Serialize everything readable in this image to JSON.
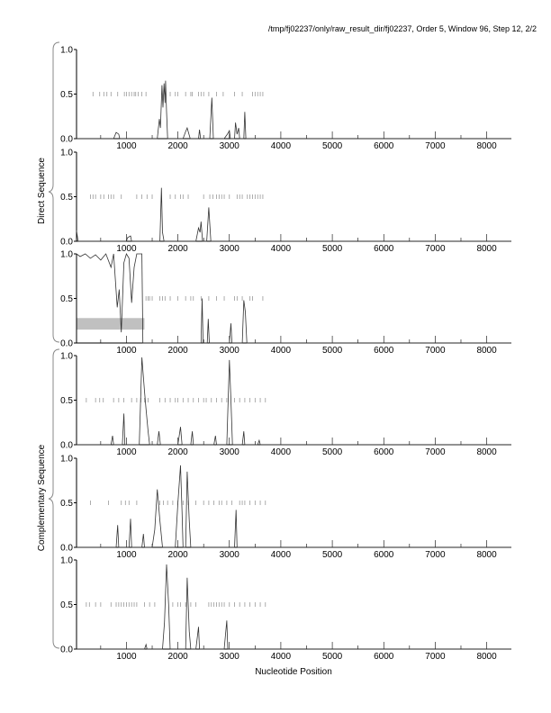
{
  "chart_data": {
    "type": "line",
    "title": "/tmp/fj02237/only/raw_result_dir/fj02237, Order 5, Window 96, Step 12, 2/2",
    "xlabel": "Nucleotide Position",
    "group_labels": [
      "Direct Sequence",
      "Complementary Sequence"
    ],
    "xlim": [
      30,
      8480
    ],
    "ylim": [
      0,
      1
    ],
    "x_ticks": [
      1000,
      2000,
      3000,
      4000,
      5000,
      6000,
      7000,
      8000
    ],
    "y_ticks": [
      "0.0",
      "0.5",
      "1.0"
    ],
    "grid": false,
    "line_color": "#333333",
    "tick_mark_color": "#999999",
    "panels": [
      {
        "series": {
          "x": [
            30,
            750,
            800,
            850,
            870,
            1600,
            1640,
            1660,
            1690,
            1710,
            1730,
            1750,
            1760,
            1780,
            1800,
            2100,
            2150,
            2180,
            2210,
            2240,
            2400,
            2420,
            2440,
            2620,
            2660,
            2690,
            2900,
            2960,
            3000,
            3020,
            3100,
            3120,
            3150,
            3180,
            3200,
            3280,
            3300,
            3320,
            8480
          ],
          "y": [
            0,
            0,
            0.07,
            0.05,
            0,
            0,
            0.22,
            0.12,
            0.6,
            0.35,
            0.62,
            0.4,
            0.65,
            0.3,
            0,
            0,
            0.08,
            0.12,
            0.06,
            0,
            0,
            0.1,
            0,
            0,
            0.46,
            0,
            0,
            0.05,
            0.09,
            0,
            0,
            0.18,
            0.05,
            0.12,
            0,
            0,
            0.3,
            0,
            0
          ]
        },
        "orf_marks": [
          350,
          480,
          560,
          620,
          700,
          830,
          960,
          1000,
          1050,
          1100,
          1150,
          1180,
          1230,
          1300,
          1380,
          1850,
          1950,
          2000,
          2150,
          2250,
          2280,
          2400,
          2450,
          2500,
          2600,
          2750,
          2880,
          3100,
          3250,
          3450,
          3500,
          3550,
          3600,
          3650
        ]
      },
      {
        "series": {
          "x": [
            30,
            60,
            1000,
            1020,
            1080,
            1100,
            1650,
            1680,
            1700,
            1730,
            2350,
            2400,
            2430,
            2450,
            2480,
            2560,
            2600,
            2640,
            8480
          ],
          "y": [
            0.12,
            0,
            0,
            0.04,
            0.06,
            0,
            0,
            0.6,
            0.1,
            0,
            0,
            0.15,
            0.1,
            0.22,
            0,
            0,
            0.38,
            0,
            0
          ]
        },
        "orf_marks": [
          300,
          350,
          400,
          500,
          560,
          650,
          700,
          750,
          900,
          1200,
          1300,
          1400,
          1500,
          1850,
          1950,
          2050,
          2100,
          2200,
          2500,
          2620,
          2680,
          2750,
          2800,
          2850,
          2900,
          3000,
          3150,
          3200,
          3250,
          3350,
          3400,
          3450,
          3500,
          3550,
          3600,
          3650
        ]
      },
      {
        "series": {
          "x": [
            30,
            100,
            200,
            300,
            400,
            500,
            600,
            700,
            750,
            820,
            860,
            900,
            950,
            1000,
            1050,
            1100,
            1150,
            1200,
            1300,
            1320,
            2450,
            2470,
            2490,
            2570,
            2590,
            2610,
            3000,
            3030,
            3050,
            3250,
            3280,
            3310,
            3340,
            8480
          ],
          "y": [
            1,
            0.97,
            1,
            0.95,
            0.99,
            0.93,
            1,
            0.85,
            1,
            0.4,
            0.6,
            0.12,
            0.9,
            1,
            0.95,
            0.45,
            0.85,
            1,
            1,
            0,
            0,
            0.5,
            0,
            0,
            0.27,
            0,
            0,
            0.22,
            0,
            0,
            0.48,
            0.35,
            0,
            0
          ]
        },
        "shaded_region": {
          "x": [
            30,
            1350
          ],
          "y": [
            0.15,
            0.28
          ]
        },
        "orf_marks": [
          1380,
          1420,
          1450,
          1500,
          1650,
          1700,
          1750,
          1850,
          2000,
          2150,
          2250,
          2300,
          2450,
          2600,
          2750,
          2900,
          3100,
          3150,
          3250,
          3400,
          3450,
          3650
        ]
      },
      {
        "series": {
          "x": [
            30,
            700,
            730,
            750,
            920,
            950,
            970,
            1250,
            1300,
            1350,
            1380,
            1420,
            1450,
            1600,
            1630,
            1660,
            2000,
            2050,
            2080,
            2250,
            2280,
            2300,
            2700,
            2730,
            2750,
            2950,
            3000,
            3030,
            3060,
            3250,
            3280,
            3300,
            3550,
            3580,
            3600,
            8480
          ],
          "y": [
            0,
            0,
            0.1,
            0,
            0,
            0.35,
            0,
            0,
            0.98,
            0.6,
            0.4,
            0.15,
            0,
            0,
            0.15,
            0,
            0,
            0.2,
            0,
            0,
            0.15,
            0,
            0,
            0.1,
            0,
            0,
            0.95,
            0.5,
            0,
            0,
            0.15,
            0,
            0,
            0.05,
            0,
            0
          ]
        },
        "orf_marks": [
          220,
          400,
          480,
          550,
          750,
          850,
          950,
          1100,
          1200,
          1280,
          1350,
          1420,
          1650,
          1750,
          1850,
          1950,
          2000,
          2100,
          2200,
          2300,
          2400,
          2500,
          2550,
          2650,
          2750,
          2850,
          2950,
          3100,
          3200,
          3300,
          3400,
          3500,
          3600,
          3700
        ]
      },
      {
        "series": {
          "x": [
            30,
            800,
            830,
            850,
            1050,
            1080,
            1100,
            1300,
            1330,
            1350,
            1500,
            1550,
            1600,
            1650,
            1700,
            1950,
            2000,
            2050,
            2080,
            2100,
            2150,
            2180,
            2220,
            2250,
            3100,
            3130,
            3150,
            8480
          ],
          "y": [
            0,
            0,
            0.25,
            0,
            0,
            0.32,
            0,
            0,
            0.15,
            0,
            0,
            0.2,
            0.65,
            0.3,
            0,
            0,
            0.5,
            0.92,
            0.4,
            0,
            0,
            0.85,
            0.3,
            0,
            0,
            0.42,
            0,
            0
          ]
        },
        "orf_marks": [
          300,
          650,
          900,
          980,
          1050,
          1200,
          1650,
          1720,
          1800,
          1900,
          2000,
          2100,
          2200,
          2350,
          2500,
          2600,
          2700,
          2800,
          2850,
          2950,
          3050,
          3200,
          3250,
          3300,
          3400,
          3500,
          3600,
          3700
        ]
      },
      {
        "series": {
          "x": [
            30,
            1350,
            1380,
            1400,
            1700,
            1740,
            1780,
            1820,
            1850,
            2150,
            2180,
            2220,
            2250,
            2350,
            2400,
            2420,
            2900,
            2950,
            2970,
            8480
          ],
          "y": [
            0,
            0,
            0.05,
            0,
            0,
            0.3,
            0.95,
            0.5,
            0,
            0,
            0.8,
            0.2,
            0,
            0,
            0.25,
            0,
            0,
            0.32,
            0,
            0
          ]
        },
        "orf_marks": [
          220,
          280,
          400,
          500,
          700,
          800,
          850,
          900,
          950,
          1000,
          1050,
          1100,
          1150,
          1200,
          1350,
          1450,
          1550,
          1900,
          2000,
          2050,
          2150,
          2250,
          2350,
          2600,
          2650,
          2700,
          2750,
          2800,
          2850,
          2900,
          3000,
          3100,
          3200,
          3300,
          3400,
          3500,
          3600,
          3700
        ]
      }
    ]
  }
}
